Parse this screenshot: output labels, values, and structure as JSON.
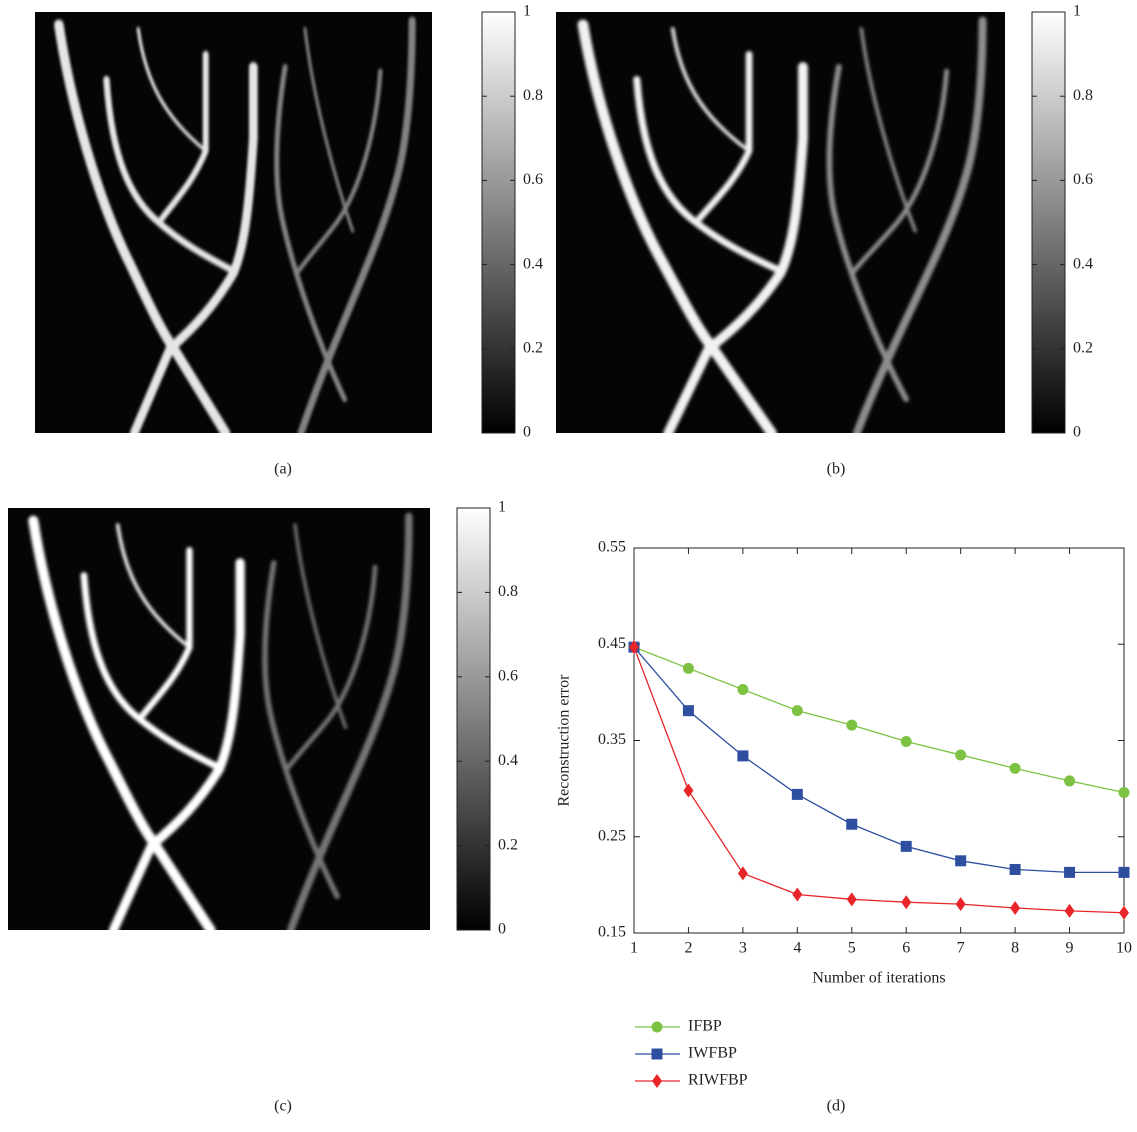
{
  "chart_data": [
    {
      "type": "image",
      "caption": "(a)",
      "ylim": [
        0,
        1
      ],
      "yticks": [
        0,
        0.2,
        0.4,
        0.6,
        0.8,
        1
      ]
    },
    {
      "type": "image",
      "caption": "(b)",
      "ylim": [
        0,
        1
      ],
      "yticks": [
        0,
        0.2,
        0.4,
        0.6,
        0.8,
        1
      ]
    },
    {
      "type": "image",
      "caption": "(c)",
      "ylim": [
        0,
        1
      ],
      "yticks": [
        0,
        0.2,
        0.4,
        0.6,
        0.8,
        1
      ]
    },
    {
      "type": "line",
      "caption": "(d)",
      "xlabel": "Number of iterations",
      "ylabel": "Reconstruction error",
      "x": [
        1,
        2,
        3,
        4,
        5,
        6,
        7,
        8,
        9,
        10
      ],
      "series": [
        {
          "name": "IFBP",
          "color": "#7dc242",
          "marker": "circle",
          "values": [
            0.447,
            0.425,
            0.403,
            0.381,
            0.366,
            0.349,
            0.335,
            0.321,
            0.308,
            0.296
          ]
        },
        {
          "name": "IWFBP",
          "color": "#2e4fa0",
          "marker": "square",
          "values": [
            0.447,
            0.381,
            0.334,
            0.294,
            0.263,
            0.24,
            0.225,
            0.216,
            0.213,
            0.213
          ]
        },
        {
          "name": "RIWFBP",
          "color": "#e8262a",
          "marker": "diamond",
          "values": [
            0.447,
            0.298,
            0.212,
            0.19,
            0.185,
            0.182,
            0.18,
            0.176,
            0.173,
            0.171
          ]
        }
      ],
      "xlim": [
        1,
        10
      ],
      "ylim": [
        0.15,
        0.55
      ],
      "xticks": [
        1,
        2,
        3,
        4,
        5,
        6,
        7,
        8,
        9,
        10
      ],
      "yticks": [
        0.15,
        0.25,
        0.35,
        0.45,
        0.55
      ]
    }
  ]
}
